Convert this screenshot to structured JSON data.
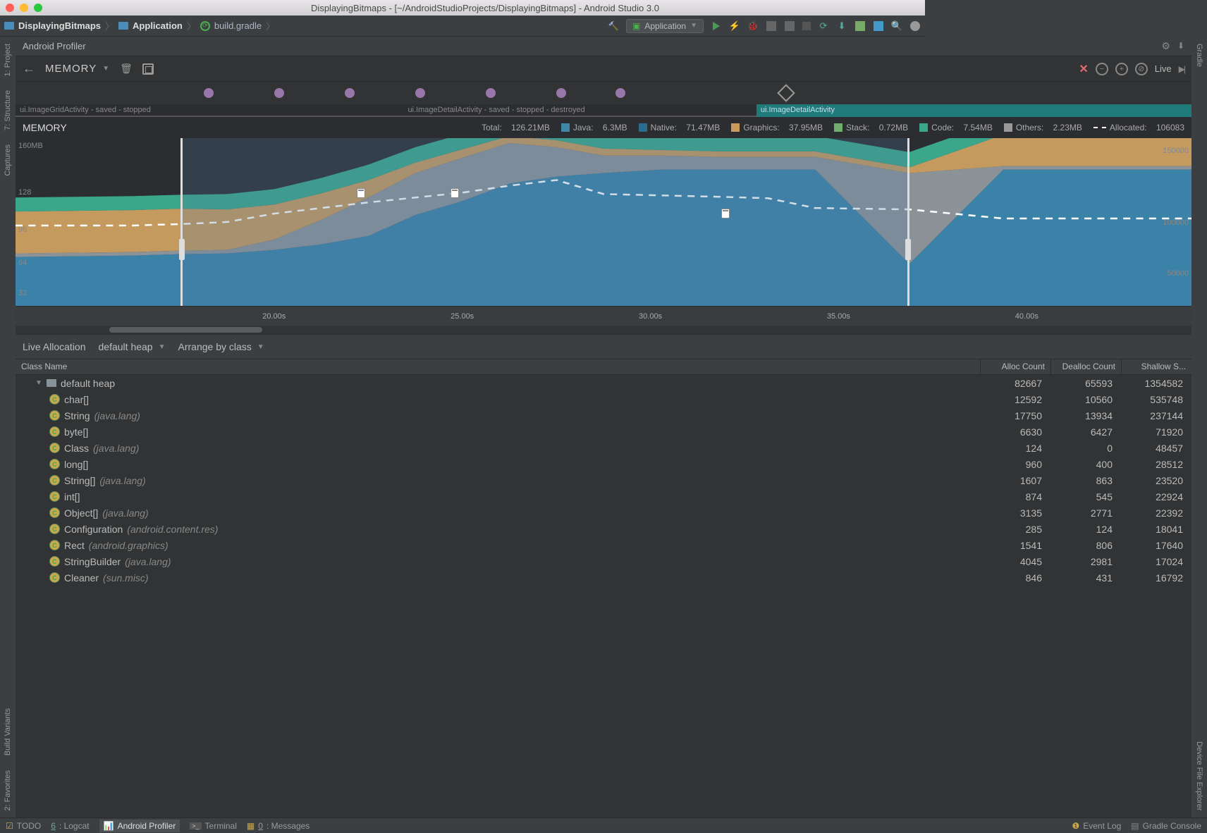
{
  "window": {
    "title": "DisplayingBitmaps - [~/AndroidStudioProjects/DisplayingBitmaps] - Android Studio 3.0"
  },
  "breadcrumb": {
    "project": "DisplayingBitmaps",
    "module": "Application",
    "file": "build.gradle"
  },
  "run_config": "Application",
  "side_left": [
    {
      "label": "1: Project",
      "icon_color": "#4e8c4e"
    },
    {
      "label": "7: Structure",
      "icon_color": "#9b6bb3"
    },
    {
      "label": "Captures",
      "icon_color": "#3f8abf"
    },
    {
      "label": "Build Variants",
      "icon_color": "#4e8c4e"
    },
    {
      "label": "2: Favorites",
      "icon_color": "#c9a94a"
    }
  ],
  "side_right": [
    {
      "label": "Gradle",
      "icon_color": "#4e8c4e"
    },
    {
      "label": "Device File Explorer",
      "icon_color": "#888"
    }
  ],
  "profiler": {
    "title": "Android Profiler",
    "section": "MEMORY",
    "live": "Live"
  },
  "events": {
    "dot_positions_pct": [
      16,
      22,
      28,
      34,
      40,
      46,
      51
    ],
    "rotate_pos_pct": 65,
    "dot_color": "#9876aa"
  },
  "activities": [
    "ui.ImageGridActivity - saved - stopped",
    "ui.ImageDetailActivity - saved - stopped - destroyed",
    "ui.ImageDetailActivity"
  ],
  "memory_legend": {
    "title": "MEMORY",
    "total": {
      "label": "Total:",
      "value": "126.21MB"
    },
    "series": [
      {
        "name": "Java:",
        "value": "6.3MB",
        "color": "#3f87a6"
      },
      {
        "name": "Native:",
        "value": "71.47MB",
        "color": "#2b6b8c"
      },
      {
        "name": "Graphics:",
        "value": "37.95MB",
        "color": "#c99a5b"
      },
      {
        "name": "Stack:",
        "value": "0.72MB",
        "color": "#6fae6f"
      },
      {
        "name": "Code:",
        "value": "7.54MB",
        "color": "#3aa68a"
      },
      {
        "name": "Others:",
        "value": "2.23MB",
        "color": "#999999"
      }
    ],
    "allocated": {
      "label": "Allocated:",
      "value": "106083"
    }
  },
  "chart": {
    "y_max_label": "160MB",
    "y_ticks_left": [
      {
        "label": "160MB",
        "pos": 2
      },
      {
        "label": "128",
        "pos": 30
      },
      {
        "label": "96",
        "pos": 52
      },
      {
        "label": "64",
        "pos": 72
      },
      {
        "label": "32",
        "pos": 90
      }
    ],
    "y_ticks_right": [
      {
        "label": "150000",
        "pos": 5
      },
      {
        "label": "100000",
        "pos": 48
      },
      {
        "label": "50000",
        "pos": 78
      }
    ],
    "time_ticks": [
      {
        "label": "20.00s",
        "pos": 21
      },
      {
        "label": "25.00s",
        "pos": 37
      },
      {
        "label": "30.00s",
        "pos": 53
      },
      {
        "label": "35.00s",
        "pos": 69
      },
      {
        "label": "40.00s",
        "pos": 85
      }
    ],
    "selection": {
      "left_pct": 14,
      "right_pct": 76
    },
    "gc_markers_pct": [
      {
        "x": 29,
        "y": 30
      },
      {
        "x": 37,
        "y": 30
      },
      {
        "x": 60,
        "y": 42
      }
    ],
    "scroll_thumb": {
      "left_pct": 8,
      "width_pct": 13
    },
    "colors": {
      "java": "#3b82a8",
      "native": "#8b9398",
      "graphics": "#c49a5f",
      "stack_code_others": "#3aa68a",
      "background": "#2b2d30",
      "dashed": "#ffffff"
    }
  },
  "allocation": {
    "title": "Live Allocation",
    "heap": "default heap",
    "arrange": "Arrange by class"
  },
  "table": {
    "columns": [
      "Class Name",
      "Alloc Count",
      "Dealloc Count",
      "Shallow S..."
    ],
    "heap_row": {
      "name": "default heap",
      "alloc": "82667",
      "dealloc": "65593",
      "shallow": "1354582"
    },
    "rows": [
      {
        "name": "char[]",
        "pkg": "",
        "alloc": "12592",
        "dealloc": "10560",
        "shallow": "535748"
      },
      {
        "name": "String",
        "pkg": "(java.lang)",
        "alloc": "17750",
        "dealloc": "13934",
        "shallow": "237144"
      },
      {
        "name": "byte[]",
        "pkg": "",
        "alloc": "6630",
        "dealloc": "6427",
        "shallow": "71920"
      },
      {
        "name": "Class",
        "pkg": "(java.lang)",
        "alloc": "124",
        "dealloc": "0",
        "shallow": "48457"
      },
      {
        "name": "long[]",
        "pkg": "",
        "alloc": "960",
        "dealloc": "400",
        "shallow": "28512"
      },
      {
        "name": "String[]",
        "pkg": "(java.lang)",
        "alloc": "1607",
        "dealloc": "863",
        "shallow": "23520"
      },
      {
        "name": "int[]",
        "pkg": "",
        "alloc": "874",
        "dealloc": "545",
        "shallow": "22924"
      },
      {
        "name": "Object[]",
        "pkg": "(java.lang)",
        "alloc": "3135",
        "dealloc": "2771",
        "shallow": "22392"
      },
      {
        "name": "Configuration",
        "pkg": "(android.content.res)",
        "alloc": "285",
        "dealloc": "124",
        "shallow": "18041"
      },
      {
        "name": "Rect",
        "pkg": "(android.graphics)",
        "alloc": "1541",
        "dealloc": "806",
        "shallow": "17640"
      },
      {
        "name": "StringBuilder",
        "pkg": "(java.lang)",
        "alloc": "4045",
        "dealloc": "2981",
        "shallow": "17024"
      },
      {
        "name": "Cleaner",
        "pkg": "(sun.misc)",
        "alloc": "846",
        "dealloc": "431",
        "shallow": "16792"
      }
    ]
  },
  "status_bar": {
    "left": [
      {
        "label": "TODO",
        "icon": "✓"
      },
      {
        "label": "6: Logcat",
        "underline": "6"
      },
      {
        "label": "Android Profiler",
        "active": true
      },
      {
        "label": "Terminal"
      },
      {
        "label": "0: Messages",
        "underline": "0"
      }
    ],
    "right": [
      {
        "label": "Event Log"
      },
      {
        "label": "Gradle Console"
      }
    ]
  }
}
